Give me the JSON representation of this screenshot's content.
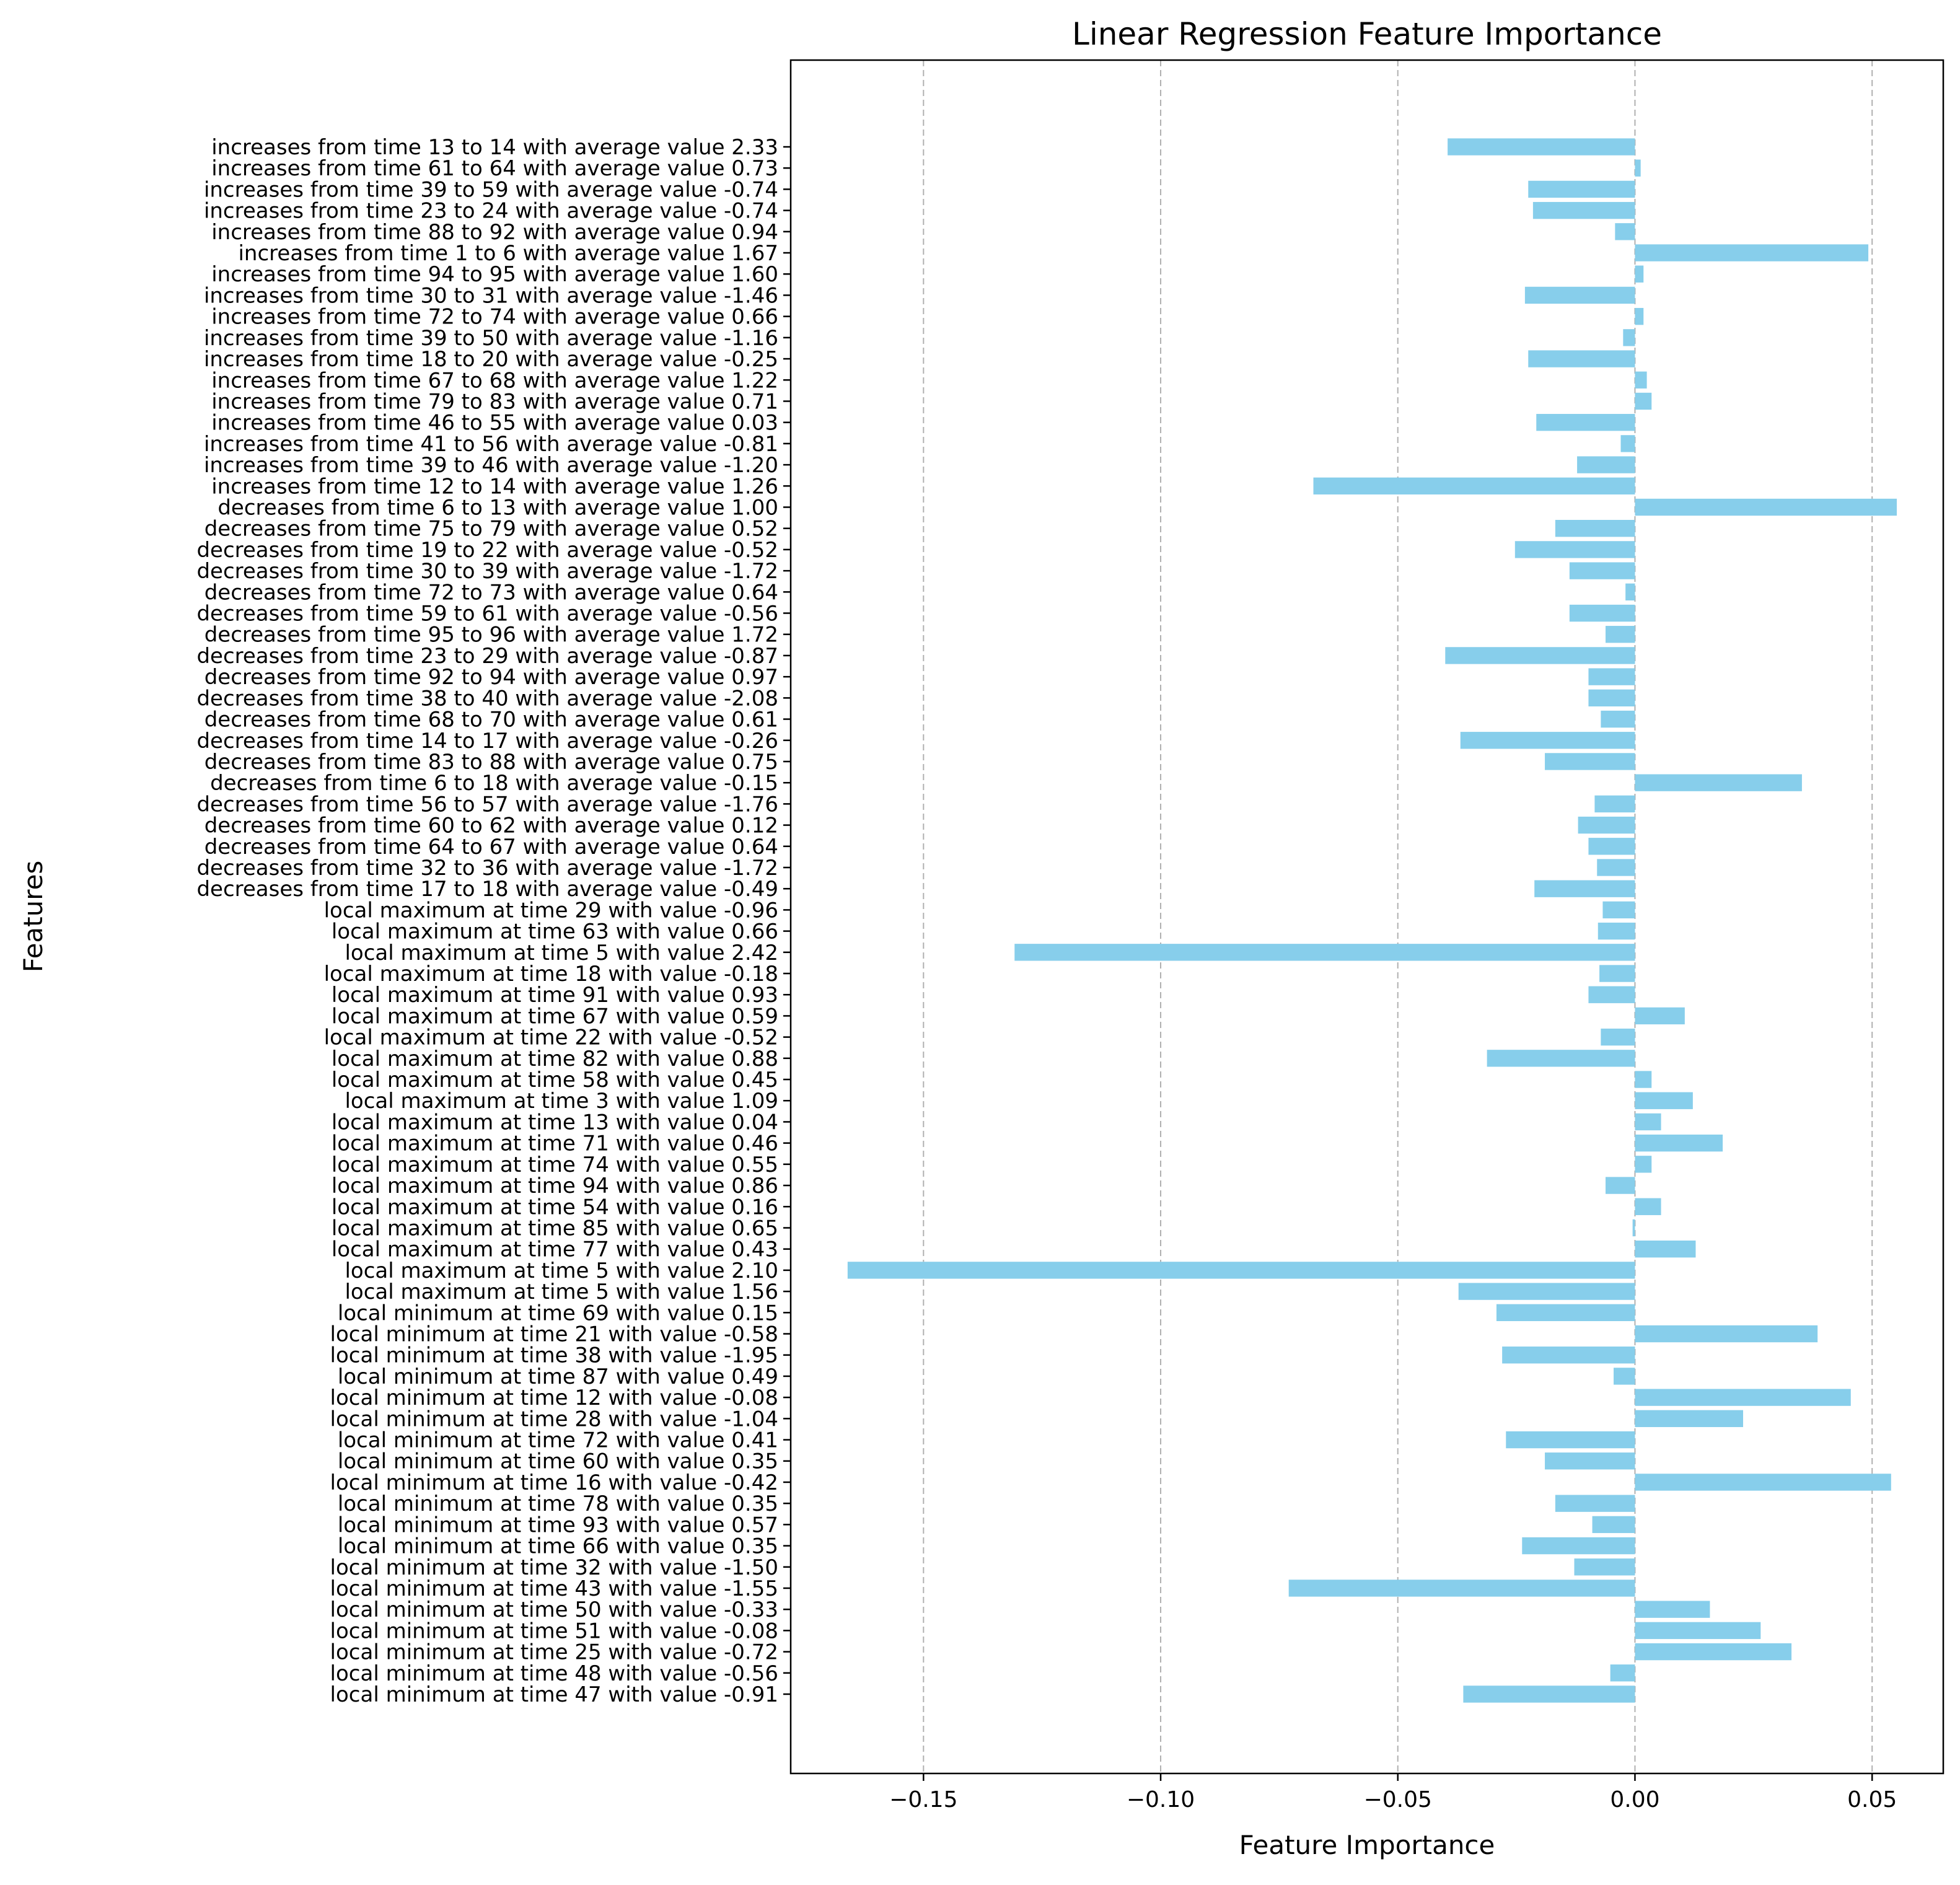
{
  "colors": {
    "bar": "#87ceeb",
    "grid": "#b0b0b0",
    "axis": "#000000",
    "background": "#ffffff"
  },
  "chart_data": {
    "type": "bar",
    "orientation": "horizontal",
    "title": "Linear Regression Feature Importance",
    "xlabel": "Feature Importance",
    "ylabel": "Features",
    "xlim": [
      -0.178,
      0.065
    ],
    "xticks": [
      -0.15,
      -0.1,
      -0.05,
      0.0,
      0.05
    ],
    "xtick_labels": [
      "−0.15",
      "−0.10",
      "−0.05",
      "0.00",
      "0.05"
    ],
    "grid": "x-dashed",
    "categories": [
      "increases from time 13 to 14 with average value 2.33",
      "increases from time 61 to 64 with average value 0.73",
      "increases from time 39 to 59 with average value -0.74",
      "increases from time 23 to 24 with average value -0.74",
      "increases from time 88 to 92 with average value 0.94",
      "increases from time 1 to 6 with average value 1.67",
      "increases from time 94 to 95 with average value 1.60",
      "increases from time 30 to 31 with average value -1.46",
      "increases from time 72 to 74 with average value 0.66",
      "increases from time 39 to 50 with average value -1.16",
      "increases from time 18 to 20 with average value -0.25",
      "increases from time 67 to 68 with average value 1.22",
      "increases from time 79 to 83 with average value 0.71",
      "increases from time 46 to 55 with average value 0.03",
      "increases from time 41 to 56 with average value -0.81",
      "increases from time 39 to 46 with average value -1.20",
      "increases from time 12 to 14 with average value 1.26",
      "decreases from time 6 to 13 with average value 1.00",
      "decreases from time 75 to 79 with average value 0.52",
      "decreases from time 19 to 22 with average value -0.52",
      "decreases from time 30 to 39 with average value -1.72",
      "decreases from time 72 to 73 with average value 0.64",
      "decreases from time 59 to 61 with average value -0.56",
      "decreases from time 95 to 96 with average value 1.72",
      "decreases from time 23 to 29 with average value -0.87",
      "decreases from time 92 to 94 with average value 0.97",
      "decreases from time 38 to 40 with average value -2.08",
      "decreases from time 68 to 70 with average value 0.61",
      "decreases from time 14 to 17 with average value -0.26",
      "decreases from time 83 to 88 with average value 0.75",
      "decreases from time 6 to 18 with average value -0.15",
      "decreases from time 56 to 57 with average value -1.76",
      "decreases from time 60 to 62 with average value 0.12",
      "decreases from time 64 to 67 with average value 0.64",
      "decreases from time 32 to 36 with average value -1.72",
      "decreases from time 17 to 18 with average value -0.49",
      "local maximum at time 29 with value -0.96",
      "local maximum at time 63 with value 0.66",
      "local maximum at time 5 with value 2.42",
      "local maximum at time 18 with value -0.18",
      "local maximum at time 91 with value 0.93",
      "local maximum at time 67 with value 0.59",
      "local maximum at time 22 with value -0.52",
      "local maximum at time 82 with value 0.88",
      "local maximum at time 58 with value 0.45",
      "local maximum at time 3 with value 1.09",
      "local maximum at time 13 with value 0.04",
      "local maximum at time 71 with value 0.46",
      "local maximum at time 74 with value 0.55",
      "local maximum at time 94 with value 0.86",
      "local maximum at time 54 with value 0.16",
      "local maximum at time 85 with value 0.65",
      "local maximum at time 77 with value 0.43",
      "local maximum at time 5 with value 2.10",
      "local maximum at time 5 with value 1.56",
      "local minimum at time 69 with value 0.15",
      "local minimum at time 21 with value -0.58",
      "local minimum at time 38 with value -1.95",
      "local minimum at time 87 with value 0.49",
      "local minimum at time 12 with value -0.08",
      "local minimum at time 28 with value -1.04",
      "local minimum at time 72 with value 0.41",
      "local minimum at time 60 with value 0.35",
      "local minimum at time 16 with value -0.42",
      "local minimum at time 78 with value 0.35",
      "local minimum at time 93 with value 0.57",
      "local minimum at time 66 with value 0.35",
      "local minimum at time 32 with value -1.50",
      "local minimum at time 43 with value -1.55",
      "local minimum at time 50 with value -0.33",
      "local minimum at time 51 with value -0.08",
      "local minimum at time 25 with value -0.72",
      "local minimum at time 48 with value -0.56",
      "local minimum at time 47 with value -0.91"
    ],
    "values": [
      -0.0395,
      0.0012,
      -0.0225,
      -0.0215,
      -0.0042,
      0.0492,
      0.0018,
      -0.0232,
      0.0018,
      -0.0025,
      -0.0225,
      0.0025,
      0.0035,
      -0.0208,
      -0.003,
      -0.0122,
      -0.0678,
      0.0552,
      -0.0168,
      -0.0253,
      -0.0138,
      -0.002,
      -0.0138,
      -0.0062,
      -0.04,
      -0.0098,
      -0.0098,
      -0.0072,
      -0.0368,
      -0.019,
      0.0352,
      -0.0085,
      -0.012,
      -0.0098,
      -0.008,
      -0.0212,
      -0.0068,
      -0.0078,
      -0.1308,
      -0.0075,
      -0.0098,
      0.0105,
      -0.0072,
      -0.0312,
      0.0035,
      0.0122,
      0.0055,
      0.0185,
      0.0035,
      -0.0062,
      0.0055,
      -0.0005,
      0.0128,
      -0.166,
      -0.0372,
      -0.0292,
      0.0385,
      -0.028,
      -0.0045,
      0.0455,
      0.0228,
      -0.0272,
      -0.019,
      0.054,
      -0.0168,
      -0.009,
      -0.0238,
      -0.0128,
      -0.073,
      0.0158,
      0.0265,
      0.033,
      -0.0052,
      -0.0362
    ]
  }
}
